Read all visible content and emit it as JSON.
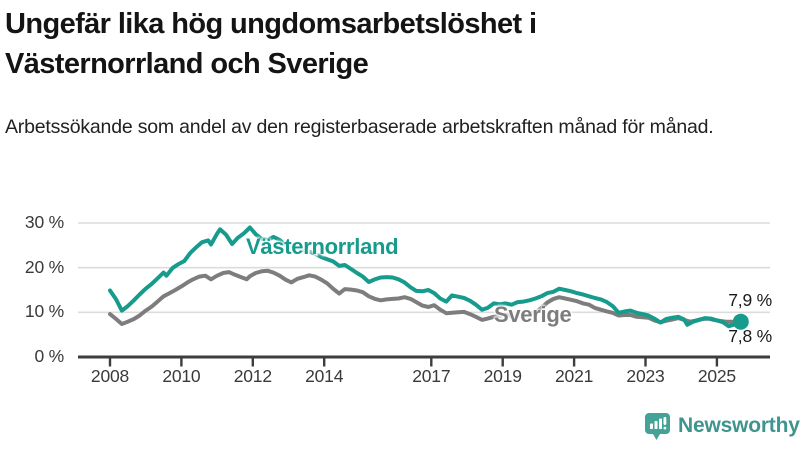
{
  "header": {
    "title": "Ungefär lika hög ungdomsarbetslöshet i Västernorrland och Sverige",
    "subtitle": "Arbetssökande som andel av den registerbaserade arbetskraften månad för månad."
  },
  "colors": {
    "accent_teal": "#169b8d",
    "series_gray": "#7d7d7d",
    "grid": "#dcdcdc",
    "axis": "#3d3d3d",
    "text": "#141414",
    "brand_teal": "#3f948e",
    "logo_icon_teal": "#44a296"
  },
  "chart_data": {
    "type": "line",
    "title": "Ungefär lika hög ungdomsarbetslöshet i Västernorrland och Sverige",
    "subtitle": "Arbetssökande som andel av den registerbaserade arbetskraften månad för månad.",
    "unit": "%",
    "xlabel": "",
    "ylabel": "",
    "ylim": [
      0,
      32
    ],
    "x_range": [
      2008,
      2025.7
    ],
    "grid": "horizontal",
    "yticks": [
      {
        "value": 0,
        "label": "0 %"
      },
      {
        "value": 10,
        "label": "10 %"
      },
      {
        "value": 20,
        "label": "20 %"
      },
      {
        "value": 30,
        "label": "30 %"
      }
    ],
    "xticks": [
      "2008",
      "2010",
      "2012",
      "2014",
      "2017",
      "2019",
      "2021",
      "2023",
      "2025"
    ],
    "series": [
      {
        "name": "Västernorrland",
        "color": "#169b8d",
        "end_label": "7,9 %",
        "end_value": 7.9,
        "points": [
          [
            2008.0,
            14.9
          ],
          [
            2008.17,
            12.9
          ],
          [
            2008.33,
            10.4
          ],
          [
            2008.5,
            11.4
          ],
          [
            2008.67,
            12.7
          ],
          [
            2008.83,
            14.0
          ],
          [
            2009.0,
            15.3
          ],
          [
            2009.17,
            16.4
          ],
          [
            2009.33,
            17.6
          ],
          [
            2009.5,
            18.9
          ],
          [
            2009.58,
            18.2
          ],
          [
            2009.75,
            19.9
          ],
          [
            2009.92,
            20.8
          ],
          [
            2010.08,
            21.5
          ],
          [
            2010.25,
            23.3
          ],
          [
            2010.42,
            24.6
          ],
          [
            2010.58,
            25.7
          ],
          [
            2010.75,
            26.1
          ],
          [
            2010.83,
            25.2
          ],
          [
            2011.0,
            27.6
          ],
          [
            2011.08,
            28.6
          ],
          [
            2011.25,
            27.4
          ],
          [
            2011.42,
            25.3
          ],
          [
            2011.58,
            26.7
          ],
          [
            2011.75,
            27.7
          ],
          [
            2011.92,
            29.0
          ],
          [
            2012.08,
            27.5
          ],
          [
            2012.25,
            26.4
          ],
          [
            2012.42,
            26.2
          ],
          [
            2012.58,
            26.9
          ],
          [
            2012.75,
            26.2
          ],
          [
            2012.92,
            25.1
          ],
          [
            2013.08,
            24.8
          ],
          [
            2013.25,
            24.3
          ],
          [
            2013.42,
            23.9
          ],
          [
            2013.58,
            23.6
          ],
          [
            2013.75,
            23.1
          ],
          [
            2013.92,
            22.4
          ],
          [
            2014.08,
            21.9
          ],
          [
            2014.25,
            21.4
          ],
          [
            2014.42,
            20.4
          ],
          [
            2014.58,
            20.6
          ],
          [
            2014.75,
            19.7
          ],
          [
            2014.92,
            18.8
          ],
          [
            2015.08,
            18.0
          ],
          [
            2015.25,
            16.8
          ],
          [
            2015.42,
            17.4
          ],
          [
            2015.58,
            17.8
          ],
          [
            2015.75,
            17.9
          ],
          [
            2015.92,
            17.8
          ],
          [
            2016.08,
            17.4
          ],
          [
            2016.25,
            16.7
          ],
          [
            2016.42,
            15.6
          ],
          [
            2016.58,
            14.8
          ],
          [
            2016.75,
            14.7
          ],
          [
            2016.92,
            15.0
          ],
          [
            2017.08,
            14.3
          ],
          [
            2017.25,
            13.1
          ],
          [
            2017.42,
            12.4
          ],
          [
            2017.58,
            13.8
          ],
          [
            2017.75,
            13.5
          ],
          [
            2017.92,
            13.2
          ],
          [
            2018.08,
            12.6
          ],
          [
            2018.25,
            11.7
          ],
          [
            2018.42,
            10.6
          ],
          [
            2018.58,
            11.0
          ],
          [
            2018.75,
            12.0
          ],
          [
            2018.92,
            11.8
          ],
          [
            2019.08,
            12.0
          ],
          [
            2019.25,
            11.7
          ],
          [
            2019.42,
            12.3
          ],
          [
            2019.58,
            12.4
          ],
          [
            2019.75,
            12.7
          ],
          [
            2019.92,
            13.1
          ],
          [
            2020.08,
            13.6
          ],
          [
            2020.25,
            14.3
          ],
          [
            2020.42,
            14.6
          ],
          [
            2020.58,
            15.3
          ],
          [
            2020.75,
            15.0
          ],
          [
            2020.92,
            14.7
          ],
          [
            2021.08,
            14.3
          ],
          [
            2021.25,
            14.0
          ],
          [
            2021.42,
            13.6
          ],
          [
            2021.58,
            13.2
          ],
          [
            2021.75,
            12.9
          ],
          [
            2021.92,
            12.3
          ],
          [
            2022.08,
            11.4
          ],
          [
            2022.25,
            9.9
          ],
          [
            2022.42,
            10.2
          ],
          [
            2022.58,
            10.4
          ],
          [
            2022.75,
            9.9
          ],
          [
            2022.92,
            9.6
          ],
          [
            2023.08,
            9.3
          ],
          [
            2023.25,
            8.6
          ],
          [
            2023.42,
            7.7
          ],
          [
            2023.58,
            8.5
          ],
          [
            2023.75,
            8.8
          ],
          [
            2023.92,
            9.0
          ],
          [
            2024.08,
            8.4
          ],
          [
            2024.17,
            7.2
          ],
          [
            2024.33,
            7.9
          ],
          [
            2024.5,
            8.3
          ],
          [
            2024.67,
            8.7
          ],
          [
            2024.83,
            8.6
          ],
          [
            2025.0,
            8.2
          ],
          [
            2025.17,
            7.8
          ],
          [
            2025.33,
            6.9
          ],
          [
            2025.5,
            7.3
          ],
          [
            2025.67,
            7.9
          ]
        ]
      },
      {
        "name": "Sverige",
        "color": "#7d7d7d",
        "end_label": "7,8 %",
        "end_value": 7.8,
        "points": [
          [
            2008.0,
            9.6
          ],
          [
            2008.17,
            8.5
          ],
          [
            2008.33,
            7.4
          ],
          [
            2008.5,
            7.9
          ],
          [
            2008.67,
            8.5
          ],
          [
            2008.83,
            9.3
          ],
          [
            2009.0,
            10.4
          ],
          [
            2009.17,
            11.3
          ],
          [
            2009.33,
            12.4
          ],
          [
            2009.5,
            13.6
          ],
          [
            2009.67,
            14.3
          ],
          [
            2009.83,
            15.0
          ],
          [
            2010.0,
            15.8
          ],
          [
            2010.17,
            16.7
          ],
          [
            2010.33,
            17.4
          ],
          [
            2010.5,
            18.0
          ],
          [
            2010.67,
            18.2
          ],
          [
            2010.83,
            17.4
          ],
          [
            2011.0,
            18.2
          ],
          [
            2011.17,
            18.8
          ],
          [
            2011.33,
            19.0
          ],
          [
            2011.5,
            18.4
          ],
          [
            2011.67,
            17.9
          ],
          [
            2011.83,
            17.4
          ],
          [
            2011.92,
            18.1
          ],
          [
            2012.08,
            18.8
          ],
          [
            2012.25,
            19.2
          ],
          [
            2012.42,
            19.3
          ],
          [
            2012.58,
            18.9
          ],
          [
            2012.75,
            18.2
          ],
          [
            2012.92,
            17.3
          ],
          [
            2013.08,
            16.7
          ],
          [
            2013.25,
            17.5
          ],
          [
            2013.42,
            17.9
          ],
          [
            2013.58,
            18.3
          ],
          [
            2013.75,
            18.0
          ],
          [
            2013.92,
            17.3
          ],
          [
            2014.08,
            16.5
          ],
          [
            2014.25,
            15.3
          ],
          [
            2014.42,
            14.2
          ],
          [
            2014.58,
            15.2
          ],
          [
            2014.75,
            15.1
          ],
          [
            2014.92,
            14.9
          ],
          [
            2015.08,
            14.5
          ],
          [
            2015.25,
            13.6
          ],
          [
            2015.42,
            13.0
          ],
          [
            2015.58,
            12.7
          ],
          [
            2015.75,
            12.9
          ],
          [
            2015.92,
            13.0
          ],
          [
            2016.08,
            13.1
          ],
          [
            2016.25,
            13.4
          ],
          [
            2016.42,
            13.0
          ],
          [
            2016.58,
            12.3
          ],
          [
            2016.75,
            11.5
          ],
          [
            2016.92,
            11.2
          ],
          [
            2017.08,
            11.6
          ],
          [
            2017.25,
            10.6
          ],
          [
            2017.42,
            9.8
          ],
          [
            2017.58,
            9.9
          ],
          [
            2017.75,
            10.0
          ],
          [
            2017.92,
            10.1
          ],
          [
            2018.08,
            9.6
          ],
          [
            2018.25,
            9.0
          ],
          [
            2018.42,
            8.3
          ],
          [
            2018.58,
            8.6
          ],
          [
            2018.75,
            9.0
          ],
          [
            2018.92,
            9.2
          ],
          [
            2019.08,
            9.4
          ],
          [
            2019.25,
            9.1
          ],
          [
            2019.42,
            9.0
          ],
          [
            2019.58,
            9.4
          ],
          [
            2019.75,
            9.6
          ],
          [
            2019.92,
            9.9
          ],
          [
            2020.08,
            11.0
          ],
          [
            2020.25,
            12.2
          ],
          [
            2020.42,
            13.0
          ],
          [
            2020.58,
            13.4
          ],
          [
            2020.75,
            13.1
          ],
          [
            2020.92,
            12.8
          ],
          [
            2021.08,
            12.5
          ],
          [
            2021.25,
            12.0
          ],
          [
            2021.42,
            11.7
          ],
          [
            2021.58,
            11.0
          ],
          [
            2021.75,
            10.6
          ],
          [
            2021.92,
            10.2
          ],
          [
            2022.08,
            9.9
          ],
          [
            2022.25,
            9.3
          ],
          [
            2022.42,
            9.4
          ],
          [
            2022.58,
            9.4
          ],
          [
            2022.75,
            9.0
          ],
          [
            2022.92,
            8.9
          ],
          [
            2023.08,
            8.8
          ],
          [
            2023.25,
            8.2
          ],
          [
            2023.42,
            7.8
          ],
          [
            2023.58,
            8.1
          ],
          [
            2023.75,
            8.4
          ],
          [
            2023.92,
            8.7
          ],
          [
            2024.08,
            8.3
          ],
          [
            2024.25,
            7.9
          ],
          [
            2024.42,
            8.2
          ],
          [
            2024.58,
            8.5
          ],
          [
            2024.75,
            8.6
          ],
          [
            2024.92,
            8.3
          ],
          [
            2025.08,
            8.1
          ],
          [
            2025.25,
            7.9
          ],
          [
            2025.42,
            7.9
          ],
          [
            2025.58,
            7.7
          ],
          [
            2025.67,
            7.8
          ]
        ]
      }
    ],
    "legend_position": "inline-labels"
  },
  "footer": {
    "brand": "Newsworthy",
    "logo_icon": "bar-chart-speech-bubble-icon"
  }
}
